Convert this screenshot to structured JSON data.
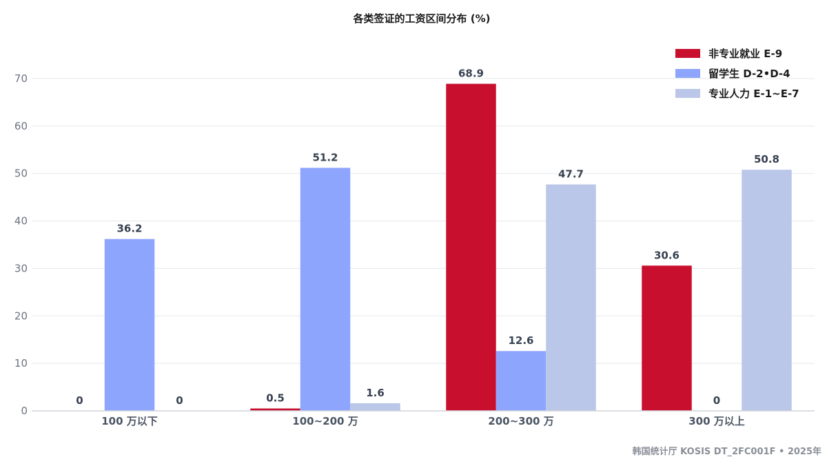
{
  "chart_data": {
    "type": "bar",
    "title": "各类签证的工资区间分布 (%)",
    "xlabel": "",
    "ylabel": "",
    "ylim": [
      0,
      70
    ],
    "yticks": [
      0,
      10,
      20,
      30,
      40,
      50,
      60,
      70
    ],
    "grid": true,
    "legend_position": "top-right",
    "categories": [
      "100 万以下",
      "100~200 万",
      "200~300 万",
      "300 万以上"
    ],
    "series": [
      {
        "name": "非专业就业 E-9",
        "color": "#c8102e",
        "values": [
          0,
          0.5,
          68.9,
          30.6
        ]
      },
      {
        "name": "留学生 D-2•D-4",
        "color": "#8ea5fd",
        "values": [
          36.2,
          51.2,
          12.6,
          0
        ]
      },
      {
        "name": "专业人力 E-1~E-7",
        "color": "#bac7e8",
        "values": [
          0,
          1.6,
          47.7,
          50.8
        ]
      }
    ],
    "source": "韩国统计厅 KOSIS DT_2FC001F • 2025年"
  }
}
